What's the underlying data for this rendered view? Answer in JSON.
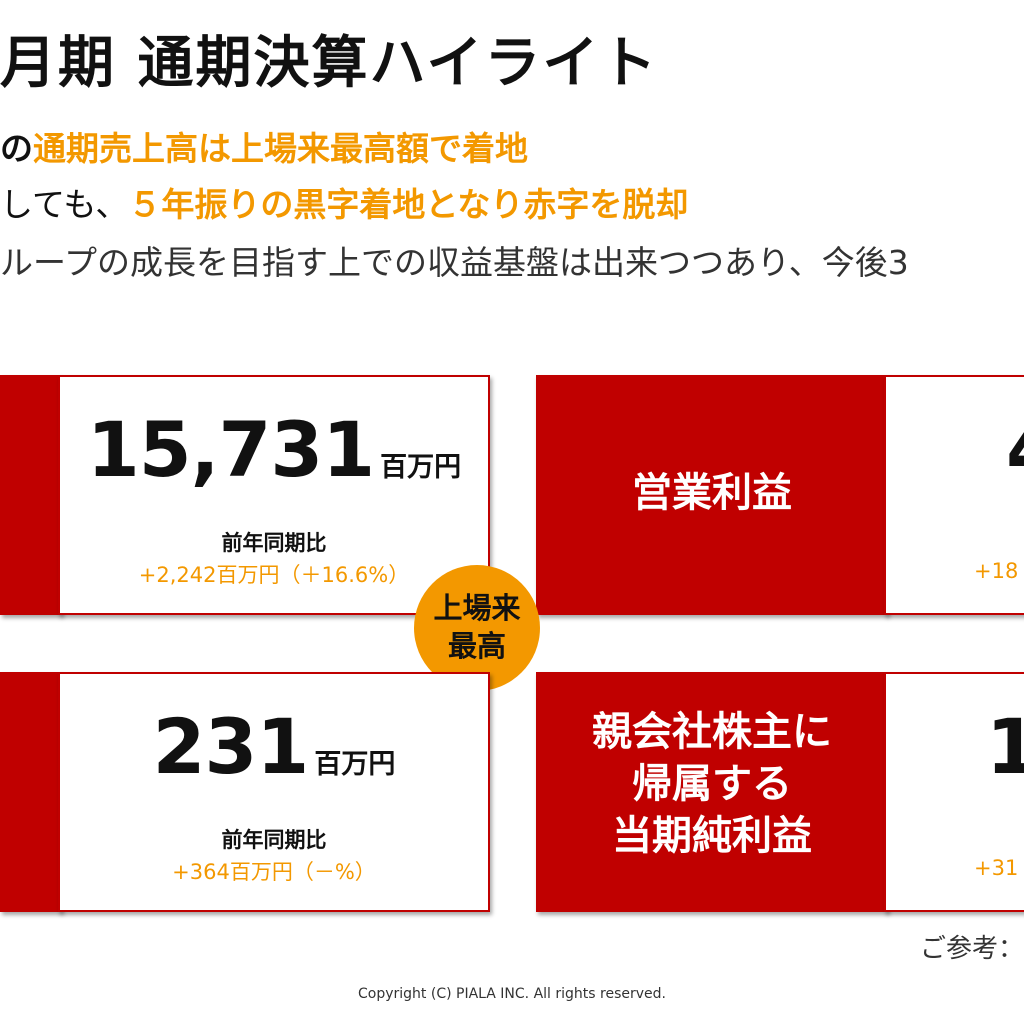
{
  "header": {
    "title": "月期 通期決算ハイライト",
    "line1_prefix": "の",
    "line1_highlight": "通期売上高は上場来最高額で着地",
    "line2_prefix": "しても、",
    "line2_highlight": "５年振りの黒字着地となり赤字を脱却",
    "line3": "ループの成長を目指す上での収益基盤は出来つつあり、今後3"
  },
  "cards": {
    "sales": {
      "value": "15,731",
      "unit": "百万円",
      "comparison_label": "前年同期比",
      "delta": "+2,242百万円（＋16.6%）"
    },
    "operating_profit": {
      "label": "営業利益",
      "value_partial": "4",
      "delta_partial": "+18"
    },
    "ordinary": {
      "value": "231",
      "unit": "百万円",
      "comparison_label": "前年同期比",
      "delta": "+364百万円（－%）"
    },
    "net_income": {
      "label_line1": "親会社株主に",
      "label_line2": "帰属する",
      "label_line3": "当期純利益",
      "value_partial": "1",
      "delta_partial": "+31"
    }
  },
  "badge": {
    "line1": "上場来",
    "line2": "最高"
  },
  "footer": {
    "note": "ご参考：",
    "copyright": "Copyright (C) PIALA INC. All rights reserved."
  },
  "colors": {
    "red": "#c00000",
    "orange": "#f39800"
  }
}
